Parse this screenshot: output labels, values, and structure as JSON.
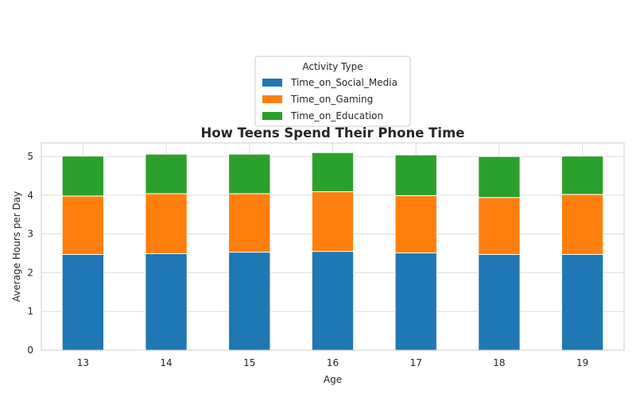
{
  "chart_data": {
    "type": "bar",
    "stacked": true,
    "title": "How Teens Spend Their Phone Time",
    "xlabel": "Age",
    "ylabel": "Average Hours per Day",
    "categories": [
      "13",
      "14",
      "15",
      "16",
      "17",
      "18",
      "19"
    ],
    "series": [
      {
        "name": "Time_on_Social_Media",
        "color": "#1f77b4",
        "values": [
          2.47,
          2.49,
          2.53,
          2.55,
          2.51,
          2.47,
          2.47
        ]
      },
      {
        "name": "Time_on_Gaming",
        "color": "#ff7f0e",
        "values": [
          1.51,
          1.55,
          1.51,
          1.54,
          1.48,
          1.47,
          1.55
        ]
      },
      {
        "name": "Time_on_Education",
        "color": "#2ca02c",
        "values": [
          1.03,
          1.02,
          1.02,
          1.01,
          1.05,
          1.06,
          0.99
        ]
      }
    ],
    "ylim": [
      0,
      5.35
    ],
    "yticks": [
      "0",
      "1",
      "2",
      "3",
      "4",
      "5"
    ],
    "grid": true,
    "legend": {
      "title": "Activity Type",
      "placement": "top-center"
    }
  }
}
